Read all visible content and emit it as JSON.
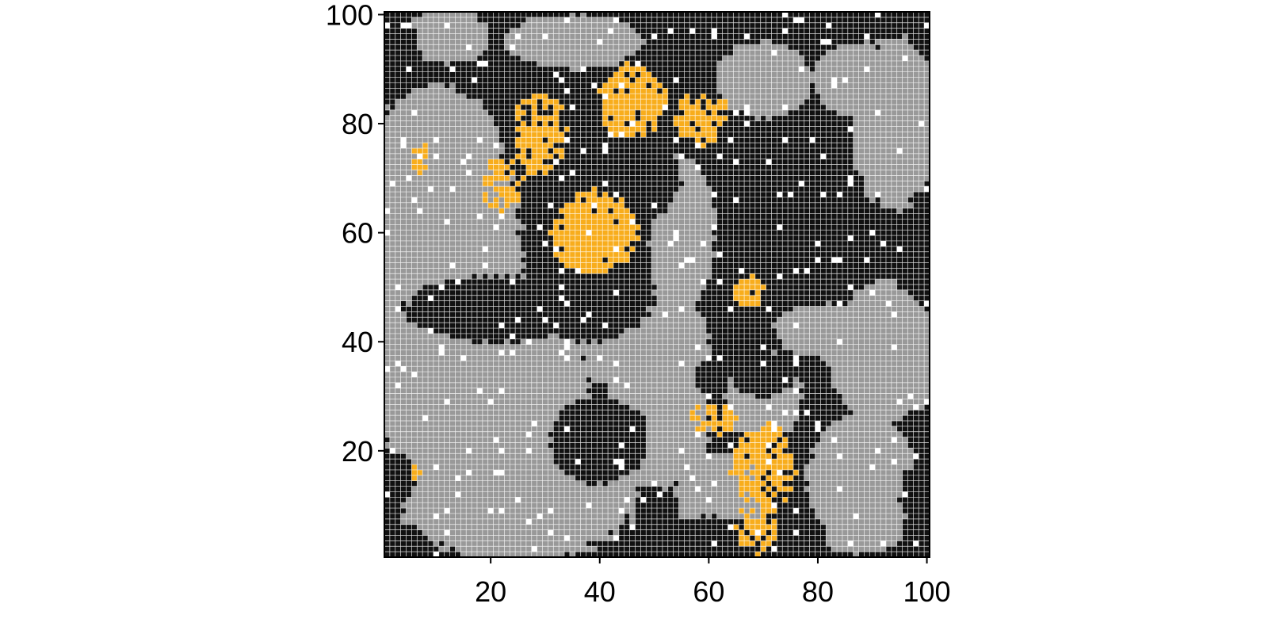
{
  "chart_data": {
    "type": "heatmap",
    "title": "",
    "xlabel": "",
    "ylabel": "",
    "grid_size": [
      100,
      100
    ],
    "xlim": [
      0.5,
      100.5
    ],
    "ylim": [
      0.5,
      100.5
    ],
    "x_ticks": [
      20,
      40,
      60,
      80,
      100
    ],
    "y_ticks": [
      20,
      40,
      60,
      80,
      100
    ],
    "x_tick_labels": [
      "20",
      "40",
      "60",
      "80",
      "100"
    ],
    "y_tick_labels": [
      "20",
      "40",
      "60",
      "80",
      "100"
    ],
    "cell_grid": "on",
    "categories": [
      {
        "state": 0,
        "color": "#111111"
      },
      {
        "state": 1,
        "color": "#999999"
      },
      {
        "state": 2,
        "color": "#f8ad1c"
      },
      {
        "state": 3,
        "color": "#ffffff"
      }
    ],
    "regions": [
      {
        "state": 0,
        "shape": "rect",
        "x": [
          1,
          100
        ],
        "y": [
          1,
          100
        ]
      },
      {
        "state": 1,
        "shape": "ellipse",
        "cx": 12,
        "cy": 50,
        "rx": 14,
        "ry": 36
      },
      {
        "state": 1,
        "shape": "ellipse",
        "cx": 18,
        "cy": 30,
        "rx": 20,
        "ry": 20
      },
      {
        "state": 1,
        "shape": "ellipse",
        "cx": 25,
        "cy": 12,
        "rx": 22,
        "ry": 12
      },
      {
        "state": 1,
        "shape": "ellipse",
        "cx": 10,
        "cy": 75,
        "rx": 12,
        "ry": 12
      },
      {
        "state": 1,
        "shape": "ellipse",
        "cx": 12,
        "cy": 96,
        "rx": 8,
        "ry": 5
      },
      {
        "state": 1,
        "shape": "ellipse",
        "cx": 35,
        "cy": 95,
        "rx": 13,
        "ry": 5
      },
      {
        "state": 1,
        "shape": "ellipse",
        "cx": 48,
        "cy": 40,
        "rx": 12,
        "ry": 10
      },
      {
        "state": 1,
        "shape": "ellipse",
        "cx": 55,
        "cy": 60,
        "rx": 6,
        "ry": 14
      },
      {
        "state": 1,
        "shape": "ellipse",
        "cx": 50,
        "cy": 25,
        "rx": 10,
        "ry": 12
      },
      {
        "state": 1,
        "shape": "ellipse",
        "cx": 62,
        "cy": 12,
        "rx": 8,
        "ry": 8
      },
      {
        "state": 1,
        "shape": "ellipse",
        "cx": 70,
        "cy": 88,
        "rx": 9,
        "ry": 7
      },
      {
        "state": 1,
        "shape": "ellipse",
        "cx": 94,
        "cy": 80,
        "rx": 8,
        "ry": 16
      },
      {
        "state": 1,
        "shape": "ellipse",
        "cx": 87,
        "cy": 88,
        "rx": 8,
        "ry": 7
      },
      {
        "state": 1,
        "shape": "ellipse",
        "cx": 92,
        "cy": 38,
        "rx": 10,
        "ry": 13
      },
      {
        "state": 1,
        "shape": "ellipse",
        "cx": 80,
        "cy": 42,
        "rx": 8,
        "ry": 5
      },
      {
        "state": 1,
        "shape": "ellipse",
        "cx": 88,
        "cy": 15,
        "rx": 10,
        "ry": 12
      },
      {
        "state": 1,
        "shape": "ellipse",
        "cx": 70,
        "cy": 30,
        "rx": 7,
        "ry": 8
      },
      {
        "state": 1,
        "shape": "ellipse",
        "cx": 88,
        "cy": 5,
        "rx": 7,
        "ry": 4
      },
      {
        "state": 0,
        "shape": "ellipse",
        "cx": 22,
        "cy": 46,
        "rx": 18,
        "ry": 6
      },
      {
        "state": 0,
        "shape": "ellipse",
        "cx": 38,
        "cy": 48,
        "rx": 12,
        "ry": 8
      },
      {
        "state": 0,
        "shape": "ellipse",
        "cx": 40,
        "cy": 22,
        "rx": 9,
        "ry": 8
      },
      {
        "state": 0,
        "shape": "ellipse",
        "cx": 3,
        "cy": 15,
        "rx": 3,
        "ry": 5
      },
      {
        "state": 0,
        "shape": "ellipse",
        "cx": 4,
        "cy": 3,
        "rx": 3,
        "ry": 3
      },
      {
        "state": 0,
        "shape": "ellipse",
        "cx": 4,
        "cy": 92,
        "rx": 3,
        "ry": 7
      },
      {
        "state": 0,
        "shape": "ellipse",
        "cx": 60,
        "cy": 4,
        "rx": 10,
        "ry": 4
      },
      {
        "state": 0,
        "shape": "ellipse",
        "cx": 70,
        "cy": 34,
        "rx": 6,
        "ry": 4
      },
      {
        "state": 0,
        "shape": "ellipse",
        "cx": 98,
        "cy": 12,
        "rx": 3,
        "ry": 5
      },
      {
        "state": 0,
        "shape": "ellipse",
        "cx": 45,
        "cy": 70,
        "rx": 10,
        "ry": 8
      },
      {
        "state": 2,
        "shape": "blob",
        "cx": 39,
        "cy": 60,
        "rx": 8,
        "ry": 8,
        "density": 0.75
      },
      {
        "state": 2,
        "shape": "blob",
        "cx": 46,
        "cy": 84,
        "rx": 6,
        "ry": 7,
        "density": 0.7
      },
      {
        "state": 2,
        "shape": "blob",
        "cx": 29,
        "cy": 78,
        "rx": 5,
        "ry": 8,
        "density": 0.6
      },
      {
        "state": 2,
        "shape": "blob",
        "cx": 22,
        "cy": 69,
        "rx": 4,
        "ry": 5,
        "density": 0.5
      },
      {
        "state": 2,
        "shape": "blob",
        "cx": 59,
        "cy": 81,
        "rx": 5,
        "ry": 5,
        "density": 0.55
      },
      {
        "state": 2,
        "shape": "blob",
        "cx": 67,
        "cy": 49,
        "rx": 3,
        "ry": 3,
        "density": 0.6
      },
      {
        "state": 2,
        "shape": "blob",
        "cx": 70,
        "cy": 17,
        "rx": 6,
        "ry": 8,
        "density": 0.65
      },
      {
        "state": 2,
        "shape": "blob",
        "cx": 69,
        "cy": 6,
        "rx": 4,
        "ry": 5,
        "density": 0.55
      },
      {
        "state": 2,
        "shape": "blob",
        "cx": 61,
        "cy": 26,
        "rx": 5,
        "ry": 3,
        "density": 0.5
      },
      {
        "state": 2,
        "shape": "blob",
        "cx": 6,
        "cy": 16,
        "rx": 1,
        "ry": 2,
        "density": 0.6
      },
      {
        "state": 2,
        "shape": "blob",
        "cx": 7,
        "cy": 74,
        "rx": 2,
        "ry": 3,
        "density": 0.45
      },
      {
        "state": 3,
        "shape": "scatter",
        "density": 0.03
      }
    ]
  }
}
